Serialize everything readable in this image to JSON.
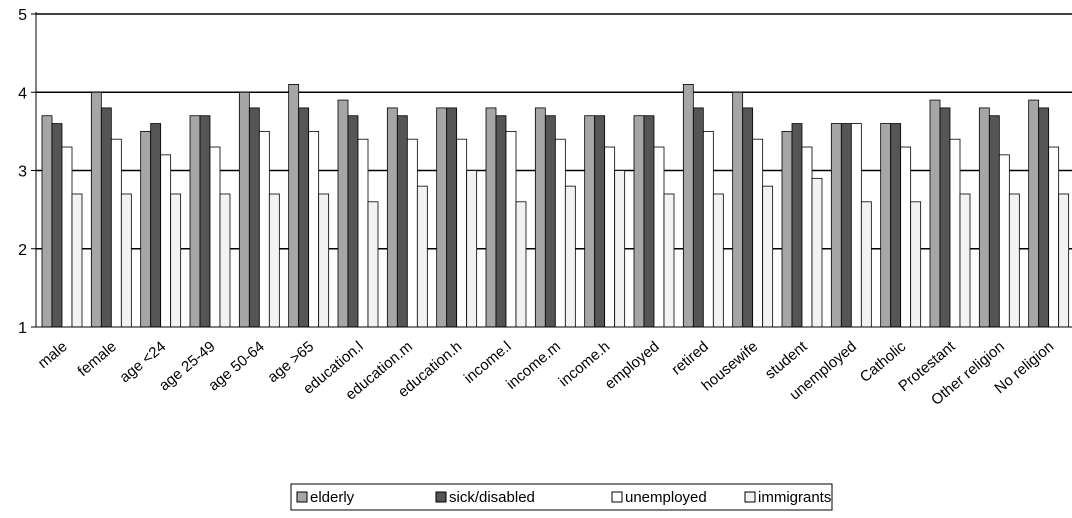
{
  "chart_data": {
    "type": "bar",
    "title": "",
    "xlabel": "",
    "ylabel": "",
    "ylim": [
      1,
      5
    ],
    "yticks": [
      "1",
      "2",
      "3",
      "4",
      "5"
    ],
    "grid": true,
    "legend_position": "bottom",
    "categories": [
      "male",
      "female",
      "age <24",
      "age 25-49",
      "age 50-64",
      "age >65",
      "education.l",
      "education.m",
      "education.h",
      "income.l",
      "income.m",
      "income.h",
      "employed",
      "retired",
      "housewife",
      "student",
      "unemployed",
      "Catholic",
      "Protestant",
      "Other religion",
      "No religion"
    ],
    "series": [
      {
        "name": "elderly",
        "color": "#a6a6a6",
        "values": [
          3.7,
          4.0,
          3.5,
          3.7,
          4.0,
          4.1,
          3.9,
          3.8,
          3.8,
          3.8,
          3.8,
          3.7,
          3.7,
          4.1,
          4.0,
          3.5,
          3.6,
          3.6,
          3.9,
          3.8,
          3.9
        ]
      },
      {
        "name": "sick/disabled",
        "color": "#555555",
        "values": [
          3.6,
          3.8,
          3.6,
          3.7,
          3.8,
          3.8,
          3.7,
          3.7,
          3.8,
          3.7,
          3.7,
          3.7,
          3.7,
          3.8,
          3.8,
          3.6,
          3.6,
          3.6,
          3.8,
          3.7,
          3.8
        ]
      },
      {
        "name": "unemployed",
        "color": "#ffffff",
        "values": [
          3.3,
          3.4,
          3.2,
          3.3,
          3.5,
          3.5,
          3.4,
          3.4,
          3.4,
          3.5,
          3.4,
          3.3,
          3.3,
          3.5,
          3.4,
          3.3,
          3.6,
          3.3,
          3.4,
          3.2,
          3.3
        ]
      },
      {
        "name": "immigrants",
        "color": "#f2f2f2",
        "values": [
          2.7,
          2.7,
          2.7,
          2.7,
          2.7,
          2.7,
          2.6,
          2.8,
          3.0,
          2.6,
          2.8,
          3.0,
          2.7,
          2.7,
          2.8,
          2.9,
          2.6,
          2.6,
          2.7,
          2.7,
          2.7
        ]
      }
    ]
  }
}
